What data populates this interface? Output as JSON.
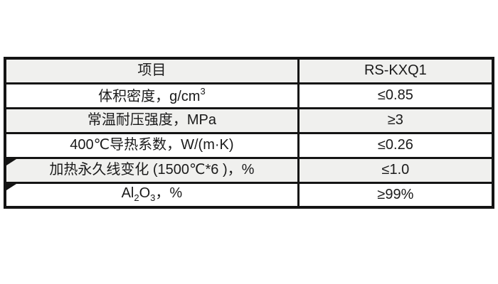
{
  "page": {
    "background": "#ffffff",
    "border_color": "#141414",
    "shaded_row_color": "#f0f0ee",
    "text_color": "#1a1a1a"
  },
  "table": {
    "columns": [
      {
        "key": "property",
        "label": "项目"
      },
      {
        "key": "value",
        "label": "RS-KXQ1"
      }
    ],
    "rows": [
      {
        "property": [
          {
            "t": "体积密度，g/cm"
          },
          {
            "t": "3",
            "style": "sup"
          }
        ],
        "value": "≤0.85",
        "shaded": false,
        "corner_mark": false
      },
      {
        "property": [
          {
            "t": "常温耐压强度，MPa"
          }
        ],
        "value": "≥3",
        "shaded": true,
        "corner_mark": false
      },
      {
        "property": [
          {
            "t": "400℃导热系数，W/(m·K)"
          }
        ],
        "value": "≤0.26",
        "shaded": false,
        "corner_mark": false
      },
      {
        "property": [
          {
            "t": "加热永久线变化 (1500℃*6 )，%"
          }
        ],
        "value": "≤1.0",
        "shaded": true,
        "corner_mark": true
      },
      {
        "property": [
          {
            "t": "Al"
          },
          {
            "t": "2",
            "style": "sub"
          },
          {
            "t": "O"
          },
          {
            "t": "3",
            "style": "sub"
          },
          {
            "t": "，%"
          }
        ],
        "value": "≥99%",
        "shaded": false,
        "corner_mark": true
      }
    ]
  },
  "chart_data": {
    "type": "table",
    "title": "",
    "columns": [
      "项目",
      "RS-KXQ1"
    ],
    "rows": [
      [
        "体积密度，g/cm³",
        "≤0.85"
      ],
      [
        "常温耐压强度，MPa",
        "≥3"
      ],
      [
        "400℃导热系数，W/(m·K)",
        "≤0.26"
      ],
      [
        "加热永久线变化 (1500℃*6 )，%",
        "≤1.0"
      ],
      [
        "Al₂O₃，%",
        "≥99%"
      ]
    ],
    "layout": {
      "header_shaded": true,
      "alternating_rows": true,
      "border_style": "thick-black",
      "text_align": "center"
    }
  }
}
